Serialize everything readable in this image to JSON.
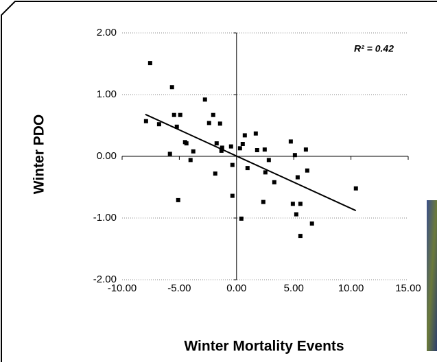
{
  "chart_data": {
    "type": "scatter",
    "x_label": "Winter Mortality Events",
    "y_label": "Winter PDO",
    "annotation": "R² = 0.42",
    "color": "#000000",
    "grid": true,
    "xlim": [
      -10,
      15
    ],
    "ylim": [
      -2,
      2
    ],
    "xticks": [
      {
        "value": -10,
        "label": "-10.00"
      },
      {
        "value": -5,
        "label": "-5.00"
      },
      {
        "value": 0,
        "label": "0.00"
      },
      {
        "value": 5,
        "label": "5.00"
      },
      {
        "value": 10,
        "label": "10.00"
      },
      {
        "value": 15,
        "label": "15.00"
      }
    ],
    "yticks": [
      {
        "value": -2,
        "label": "-2.00"
      },
      {
        "value": -1,
        "label": "-1.00"
      },
      {
        "value": 0,
        "label": "0.00"
      },
      {
        "value": 1,
        "label": "1.00"
      },
      {
        "value": 2,
        "label": "2.00"
      }
    ],
    "x": [
      -7.55,
      -5.64,
      -5.46,
      -4.92,
      -7.91,
      -6.77,
      -5.22,
      -5.82,
      -4.5,
      -4.38,
      -4.02,
      -3.78,
      -5.1,
      -2.76,
      -2.04,
      -2.4,
      -1.44,
      -1.74,
      -1.26,
      -1.32,
      -1.86,
      -0.48,
      -0.36,
      -0.36,
      0.3,
      0.54,
      0.72,
      0.96,
      0.42,
      1.68,
      1.8,
      2.46,
      2.82,
      2.52,
      2.34,
      3.3,
      4.74,
      5.1,
      4.92,
      5.34,
      5.58,
      5.22,
      5.58,
      6.06,
      6.18,
      6.59,
      10.43
    ],
    "values": [
      1.51,
      1.12,
      0.67,
      0.67,
      0.57,
      0.52,
      0.48,
      0.04,
      0.23,
      0.21,
      -0.06,
      0.08,
      -0.71,
      0.92,
      0.67,
      0.54,
      0.53,
      0.21,
      0.14,
      0.09,
      -0.28,
      0.16,
      -0.14,
      -0.64,
      0.13,
      0.2,
      0.34,
      -0.19,
      -1.01,
      0.37,
      0.1,
      0.11,
      -0.06,
      -0.26,
      -0.74,
      -0.42,
      0.24,
      0.02,
      -0.77,
      -0.34,
      -0.77,
      -0.94,
      -1.29,
      0.11,
      -0.23,
      -1.09,
      -0.52
    ],
    "trendline": {
      "x": [
        -7.97,
        10.43
      ],
      "y": [
        0.68,
        -0.88
      ]
    }
  }
}
